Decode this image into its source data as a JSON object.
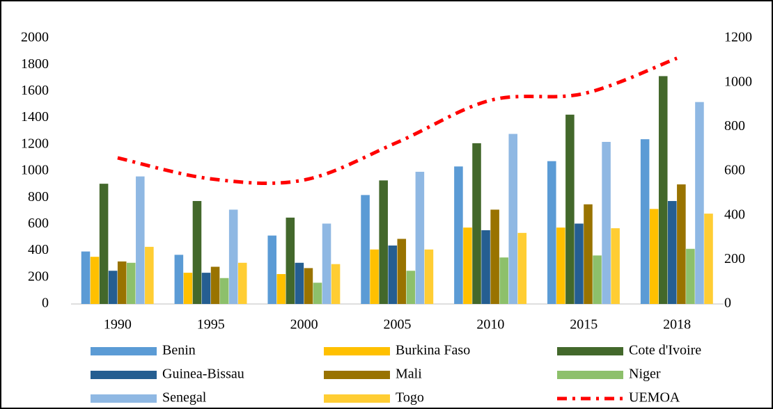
{
  "chart_data": {
    "type": "bar",
    "categories": [
      "1990",
      "1995",
      "2000",
      "2005",
      "2010",
      "2015",
      "2018"
    ],
    "series": [
      {
        "name": "Benin",
        "color": "#5b9bd5",
        "values": [
          395,
          370,
          515,
          820,
          1035,
          1075,
          1240
        ]
      },
      {
        "name": "Burkina Faso",
        "color": "#ffc000",
        "values": [
          355,
          235,
          225,
          410,
          575,
          575,
          715
        ]
      },
      {
        "name": "Cote d'Ivoire",
        "color": "#43682b",
        "values": [
          905,
          775,
          650,
          930,
          1210,
          1425,
          1715
        ]
      },
      {
        "name": "Guinea-Bissau",
        "color": "#255e91",
        "values": [
          250,
          235,
          310,
          440,
          555,
          605,
          775
        ]
      },
      {
        "name": "Mali",
        "color": "#997300",
        "values": [
          320,
          280,
          270,
          490,
          710,
          750,
          900
        ]
      },
      {
        "name": "Niger",
        "color": "#8dc06b",
        "values": [
          310,
          195,
          160,
          250,
          350,
          365,
          415
        ]
      },
      {
        "name": "Senegal",
        "color": "#8fb8e3",
        "values": [
          960,
          710,
          605,
          995,
          1280,
          1220,
          1520
        ]
      },
      {
        "name": "Togo",
        "color": "#ffcd33",
        "values": [
          430,
          310,
          300,
          410,
          535,
          570,
          680
        ]
      },
      {
        "name": "UEMOA",
        "color": "#ff0000",
        "type": "line",
        "axis": "y2",
        "values": [
          660,
          565,
          560,
          730,
          920,
          950,
          1110
        ]
      }
    ],
    "ylim": [
      0,
      2000
    ],
    "yticks": [
      0,
      200,
      400,
      600,
      800,
      1000,
      1200,
      1400,
      1600,
      1800,
      2000
    ],
    "y2lim": [
      0,
      1200
    ],
    "y2ticks": [
      0,
      200,
      400,
      600,
      800,
      1000,
      1200
    ],
    "grid": false,
    "legend": "bottom"
  }
}
